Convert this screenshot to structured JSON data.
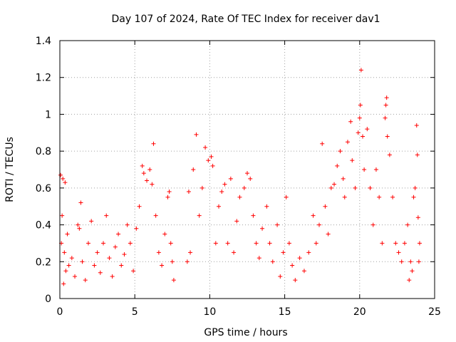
{
  "chart_data": {
    "type": "scatter",
    "title": "Day 107 of 2024, Rate Of TEC Index for receiver dav1",
    "xlabel": "GPS time / hours",
    "ylabel": "ROTI / TECUs",
    "xlim": [
      0,
      25
    ],
    "ylim": [
      0,
      1.4
    ],
    "x_ticks": [
      "0",
      "5",
      "10",
      "15",
      "20",
      "25"
    ],
    "y_ticks": [
      "0",
      "0.2",
      "0.4",
      "0.6",
      "0.8",
      "1",
      "1.2",
      "1.4"
    ],
    "grid": true,
    "marker": "+",
    "color": "#ff0000",
    "series": [
      {
        "points": [
          [
            0.05,
            0.67
          ],
          [
            0.2,
            0.65
          ],
          [
            0.35,
            0.63
          ],
          [
            0.15,
            0.45
          ],
          [
            0.1,
            0.3
          ],
          [
            0.3,
            0.25
          ],
          [
            0.5,
            0.35
          ],
          [
            0.4,
            0.15
          ],
          [
            0.25,
            0.08
          ],
          [
            0.6,
            0.18
          ],
          [
            0.8,
            0.22
          ],
          [
            1.0,
            0.12
          ],
          [
            1.2,
            0.4
          ],
          [
            1.3,
            0.38
          ],
          [
            1.4,
            0.52
          ],
          [
            1.5,
            0.2
          ],
          [
            1.7,
            0.1
          ],
          [
            1.9,
            0.3
          ],
          [
            2.1,
            0.42
          ],
          [
            2.3,
            0.18
          ],
          [
            2.5,
            0.25
          ],
          [
            2.7,
            0.14
          ],
          [
            2.9,
            0.3
          ],
          [
            3.1,
            0.45
          ],
          [
            3.3,
            0.22
          ],
          [
            3.5,
            0.12
          ],
          [
            3.7,
            0.28
          ],
          [
            3.9,
            0.35
          ],
          [
            4.1,
            0.18
          ],
          [
            4.3,
            0.24
          ],
          [
            4.5,
            0.4
          ],
          [
            4.7,
            0.3
          ],
          [
            4.9,
            0.15
          ],
          [
            5.1,
            0.38
          ],
          [
            5.3,
            0.5
          ],
          [
            5.5,
            0.72
          ],
          [
            5.6,
            0.68
          ],
          [
            5.8,
            0.64
          ],
          [
            6.0,
            0.7
          ],
          [
            6.15,
            0.62
          ],
          [
            6.25,
            0.84
          ],
          [
            6.4,
            0.45
          ],
          [
            6.6,
            0.25
          ],
          [
            6.8,
            0.18
          ],
          [
            7.0,
            0.35
          ],
          [
            7.2,
            0.55
          ],
          [
            7.3,
            0.58
          ],
          [
            7.5,
            0.2
          ],
          [
            7.6,
            0.1
          ],
          [
            7.4,
            0.3
          ],
          [
            8.5,
            0.2
          ],
          [
            8.6,
            0.58
          ],
          [
            8.7,
            0.25
          ],
          [
            8.9,
            0.7
          ],
          [
            9.1,
            0.89
          ],
          [
            9.3,
            0.45
          ],
          [
            9.5,
            0.6
          ],
          [
            9.7,
            0.82
          ],
          [
            9.9,
            0.75
          ],
          [
            10.1,
            0.77
          ],
          [
            10.2,
            0.72
          ],
          [
            10.4,
            0.3
          ],
          [
            10.6,
            0.5
          ],
          [
            10.8,
            0.58
          ],
          [
            11.0,
            0.62
          ],
          [
            11.2,
            0.3
          ],
          [
            11.4,
            0.65
          ],
          [
            11.6,
            0.25
          ],
          [
            11.8,
            0.42
          ],
          [
            12.0,
            0.55
          ],
          [
            12.3,
            0.6
          ],
          [
            12.5,
            0.68
          ],
          [
            12.7,
            0.65
          ],
          [
            12.9,
            0.45
          ],
          [
            13.1,
            0.3
          ],
          [
            13.3,
            0.22
          ],
          [
            13.5,
            0.38
          ],
          [
            13.8,
            0.5
          ],
          [
            14.0,
            0.3
          ],
          [
            14.2,
            0.2
          ],
          [
            14.5,
            0.4
          ],
          [
            14.7,
            0.12
          ],
          [
            14.9,
            0.25
          ],
          [
            15.1,
            0.55
          ],
          [
            15.3,
            0.3
          ],
          [
            15.5,
            0.18
          ],
          [
            15.7,
            0.1
          ],
          [
            16.0,
            0.22
          ],
          [
            16.3,
            0.15
          ],
          [
            16.6,
            0.25
          ],
          [
            16.9,
            0.45
          ],
          [
            17.1,
            0.3
          ],
          [
            17.3,
            0.4
          ],
          [
            17.5,
            0.84
          ],
          [
            17.7,
            0.5
          ],
          [
            17.9,
            0.35
          ],
          [
            18.1,
            0.6
          ],
          [
            18.3,
            0.62
          ],
          [
            18.5,
            0.72
          ],
          [
            18.7,
            0.8
          ],
          [
            18.9,
            0.65
          ],
          [
            19.0,
            0.55
          ],
          [
            19.2,
            0.85
          ],
          [
            19.4,
            0.96
          ],
          [
            19.5,
            0.75
          ],
          [
            19.7,
            0.6
          ],
          [
            19.9,
            0.9
          ],
          [
            20.0,
            0.98
          ],
          [
            20.05,
            1.05
          ],
          [
            20.1,
            1.24
          ],
          [
            20.2,
            0.88
          ],
          [
            20.3,
            0.7
          ],
          [
            20.5,
            0.92
          ],
          [
            20.7,
            0.6
          ],
          [
            20.9,
            0.4
          ],
          [
            21.1,
            0.7
          ],
          [
            21.3,
            0.55
          ],
          [
            21.5,
            0.3
          ],
          [
            21.7,
            0.98
          ],
          [
            21.75,
            1.05
          ],
          [
            21.8,
            1.09
          ],
          [
            21.85,
            0.88
          ],
          [
            22.0,
            0.78
          ],
          [
            22.2,
            0.55
          ],
          [
            22.4,
            0.3
          ],
          [
            22.6,
            0.25
          ],
          [
            22.8,
            0.2
          ],
          [
            23.0,
            0.3
          ],
          [
            23.2,
            0.4
          ],
          [
            23.4,
            0.2
          ],
          [
            23.6,
            0.55
          ],
          [
            23.7,
            0.6
          ],
          [
            23.8,
            0.94
          ],
          [
            23.85,
            0.78
          ],
          [
            23.9,
            0.44
          ],
          [
            24.0,
            0.3
          ],
          [
            23.95,
            0.2
          ],
          [
            23.5,
            0.15
          ],
          [
            23.3,
            0.1
          ]
        ]
      }
    ]
  }
}
